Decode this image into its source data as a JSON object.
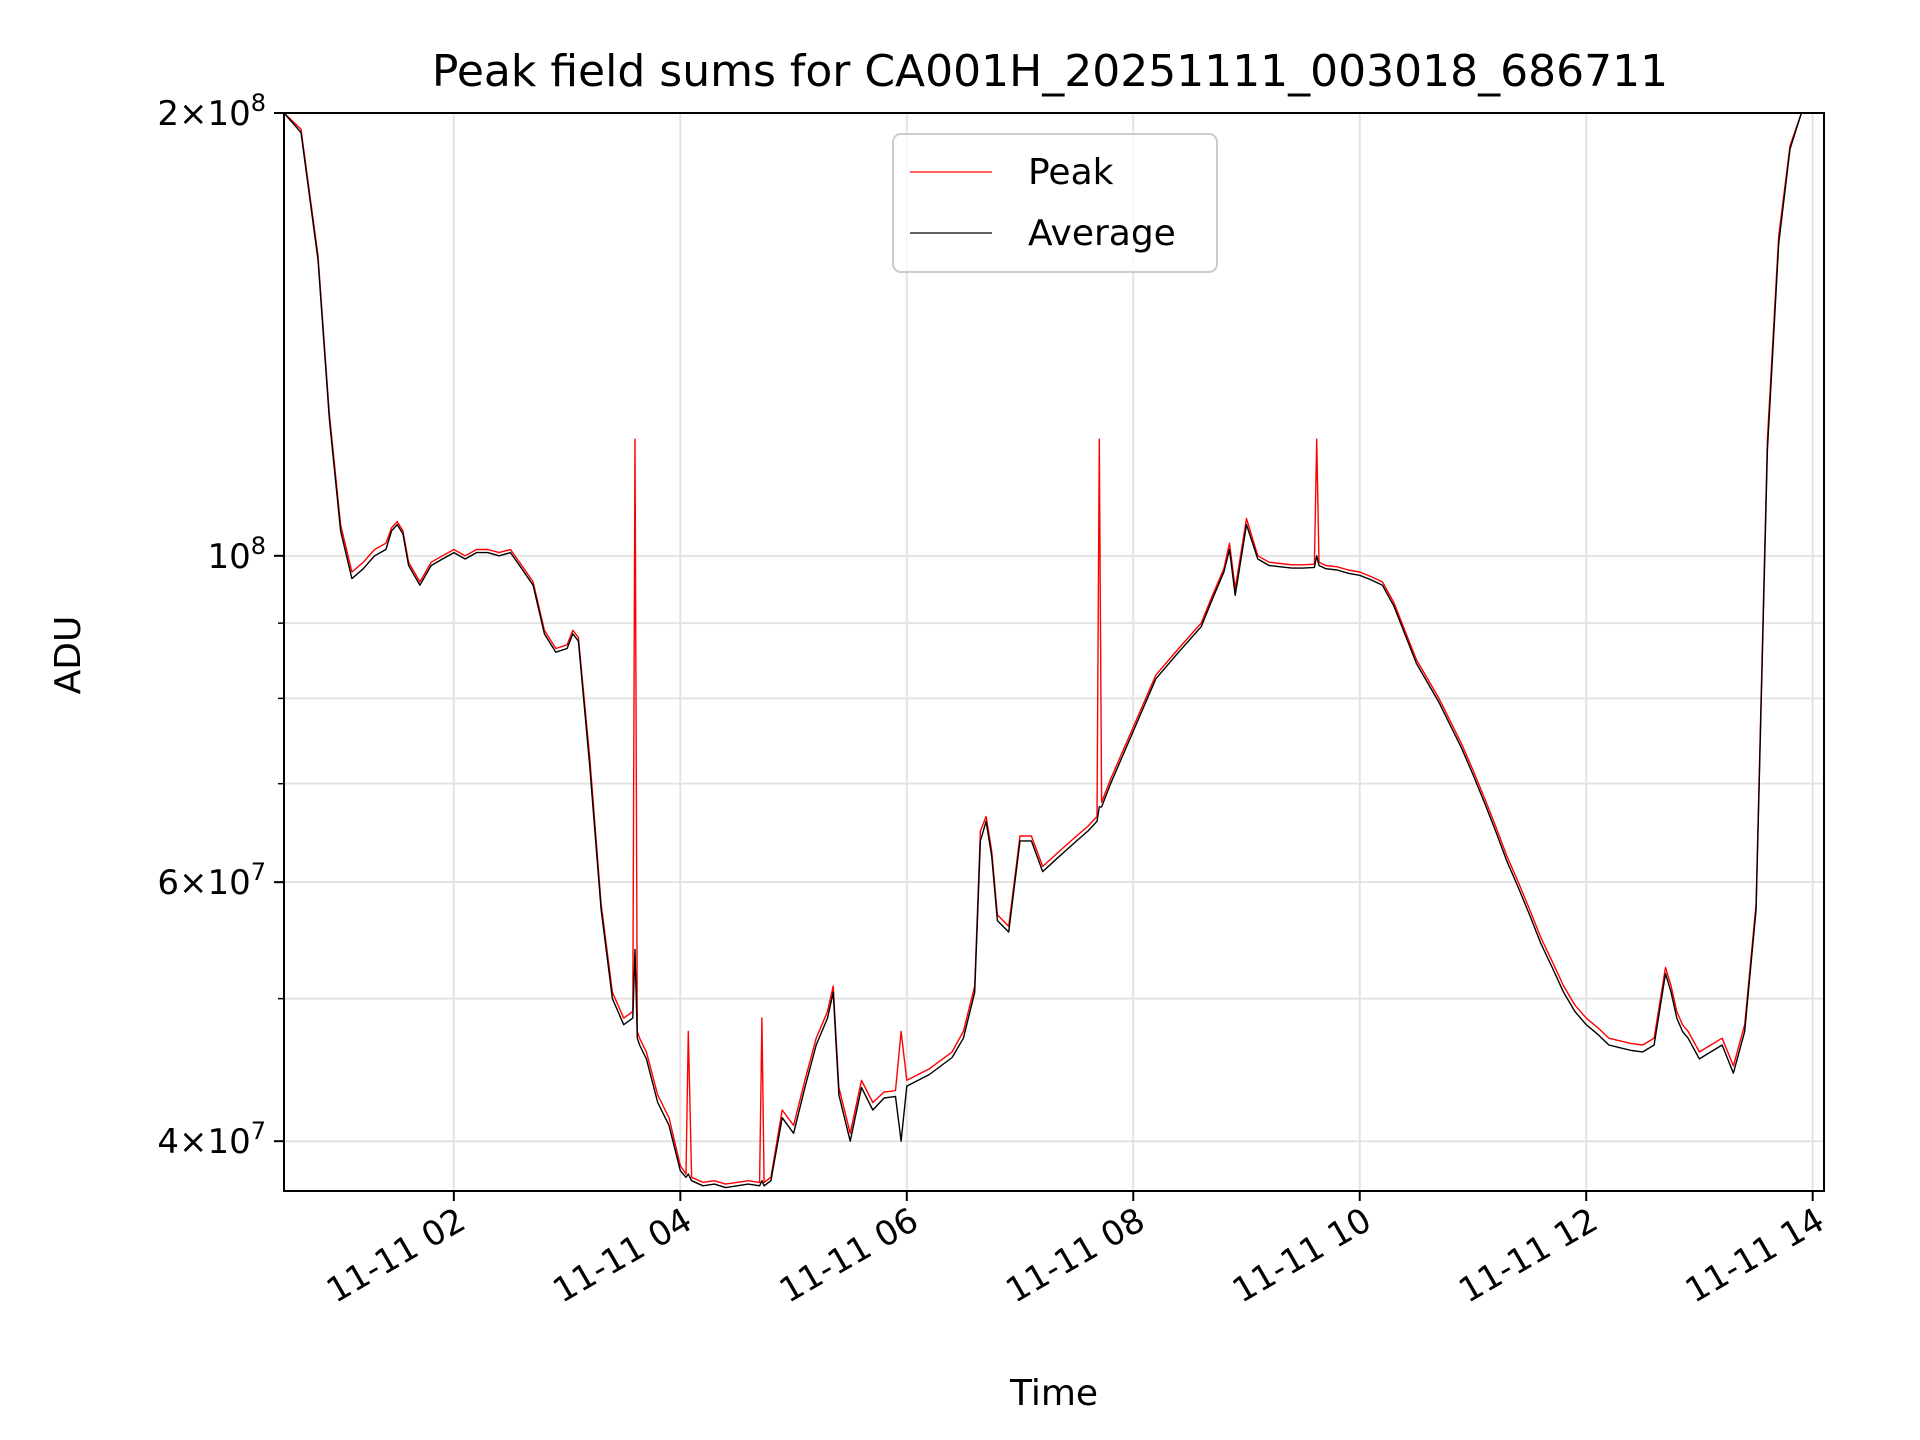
{
  "chart_data": {
    "type": "line",
    "title": "Peak field sums for CA001H_20251111_003018_686711",
    "xlabel": "Time",
    "ylabel": "ADU",
    "yscale": "log",
    "xlim": [
      0.5,
      14.1
    ],
    "ylim": [
      37000000,
      200000000
    ],
    "grid": true,
    "legend_position": "top-center",
    "xticks": [
      {
        "value": 2,
        "label": "11-11 02"
      },
      {
        "value": 4,
        "label": "11-11 04"
      },
      {
        "value": 6,
        "label": "11-11 06"
      },
      {
        "value": 8,
        "label": "11-11 08"
      },
      {
        "value": 10,
        "label": "11-11 10"
      },
      {
        "value": 12,
        "label": "11-11 12"
      },
      {
        "value": 14,
        "label": "11-11 14"
      }
    ],
    "yticks": [
      {
        "value": 40000000,
        "mantissa": "4",
        "exponent": "7"
      },
      {
        "value": 60000000,
        "mantissa": "6",
        "exponent": "7"
      },
      {
        "value": 100000000,
        "mantissa": "",
        "exponent": "8"
      },
      {
        "value": 200000000,
        "mantissa": "2",
        "exponent": "8"
      }
    ],
    "yminor": [
      50000000,
      70000000,
      80000000,
      90000000
    ],
    "series": [
      {
        "name": "Peak",
        "color": "#ff0000",
        "x": [
          0.5,
          0.65,
          0.8,
          0.9,
          1.0,
          1.1,
          1.2,
          1.3,
          1.4,
          1.45,
          1.5,
          1.55,
          1.6,
          1.7,
          1.8,
          1.9,
          2.0,
          2.1,
          2.2,
          2.3,
          2.4,
          2.5,
          2.6,
          2.7,
          2.8,
          2.9,
          3.0,
          3.05,
          3.1,
          3.2,
          3.3,
          3.4,
          3.5,
          3.58,
          3.6,
          3.62,
          3.64,
          3.7,
          3.8,
          3.9,
          4.0,
          4.05,
          4.07,
          4.1,
          4.2,
          4.3,
          4.4,
          4.5,
          4.6,
          4.7,
          4.72,
          4.74,
          4.8,
          4.9,
          5.0,
          5.1,
          5.2,
          5.3,
          5.35,
          5.4,
          5.5,
          5.6,
          5.7,
          5.8,
          5.9,
          5.95,
          6.0,
          6.2,
          6.4,
          6.5,
          6.6,
          6.65,
          6.7,
          6.75,
          6.8,
          6.9,
          7.0,
          7.1,
          7.2,
          7.3,
          7.4,
          7.5,
          7.6,
          7.68,
          7.7,
          7.72,
          7.8,
          8.0,
          8.2,
          8.4,
          8.6,
          8.7,
          8.8,
          8.85,
          8.9,
          9.0,
          9.1,
          9.2,
          9.3,
          9.4,
          9.5,
          9.6,
          9.62,
          9.64,
          9.7,
          9.8,
          9.9,
          10.0,
          10.1,
          10.2,
          10.3,
          10.5,
          10.7,
          10.9,
          11.0,
          11.1,
          11.2,
          11.3,
          11.4,
          11.5,
          11.6,
          11.7,
          11.8,
          11.9,
          12.0,
          12.1,
          12.2,
          12.3,
          12.4,
          12.5,
          12.6,
          12.7,
          12.75,
          12.8,
          12.85,
          12.9,
          13.0,
          13.1,
          13.2,
          13.3,
          13.4,
          13.5,
          13.6,
          13.7,
          13.8,
          13.9,
          14.0,
          14.1
        ],
        "values": [
          200000000,
          195000000,
          160000000,
          125000000,
          105000000,
          97500000,
          99000000,
          101000000,
          102000000,
          104500000,
          105500000,
          104000000,
          99000000,
          96000000,
          99000000,
          100000000,
          101000000,
          100000000,
          101000000,
          101000000,
          100500000,
          101000000,
          98500000,
          96000000,
          89000000,
          86500000,
          87000000,
          89000000,
          88000000,
          73000000,
          58000000,
          50500000,
          48500000,
          49000000,
          120000000,
          47500000,
          47000000,
          46000000,
          43000000,
          41500000,
          38500000,
          38000000,
          47500000,
          37800000,
          37500000,
          37600000,
          37400000,
          37500000,
          37600000,
          37500000,
          48500000,
          37500000,
          37800000,
          42000000,
          41000000,
          44000000,
          47000000,
          49000000,
          51000000,
          43500000,
          40500000,
          44000000,
          42500000,
          43200000,
          43300000,
          47500000,
          44000000,
          44800000,
          46000000,
          47500000,
          51000000,
          65000000,
          66500000,
          63000000,
          57000000,
          56000000,
          64500000,
          64500000,
          61500000,
          62500000,
          63500000,
          64500000,
          65500000,
          66500000,
          120000000,
          68000000,
          70500000,
          76500000,
          83000000,
          86500000,
          90000000,
          94000000,
          98000000,
          102000000,
          95000000,
          106000000,
          100000000,
          99000000,
          98800000,
          98600000,
          98600000,
          98700000,
          120000000,
          99000000,
          98500000,
          98300000,
          97800000,
          97500000,
          96800000,
          96000000,
          93000000,
          85000000,
          80000000,
          74500000,
          71500000,
          68500000,
          65500000,
          62500000,
          60000000,
          57500000,
          55000000,
          53000000,
          51000000,
          49500000,
          48500000,
          47800000,
          47000000,
          46800000,
          46600000,
          46500000,
          47000000,
          52500000,
          51000000,
          49000000,
          48000000,
          47500000,
          46000000,
          46500000,
          47000000,
          45000000,
          48000000,
          58000000,
          120000000,
          165000000,
          190000000,
          200000000,
          200000000,
          200000000
        ]
      },
      {
        "name": "Average",
        "color": "#000000",
        "x": [
          0.5,
          0.65,
          0.8,
          0.9,
          1.0,
          1.1,
          1.2,
          1.3,
          1.4,
          1.45,
          1.5,
          1.55,
          1.6,
          1.7,
          1.8,
          1.9,
          2.0,
          2.1,
          2.2,
          2.3,
          2.4,
          2.5,
          2.6,
          2.7,
          2.8,
          2.9,
          3.0,
          3.05,
          3.1,
          3.2,
          3.3,
          3.4,
          3.5,
          3.58,
          3.6,
          3.62,
          3.64,
          3.7,
          3.8,
          3.9,
          4.0,
          4.05,
          4.07,
          4.1,
          4.2,
          4.3,
          4.4,
          4.5,
          4.6,
          4.7,
          4.72,
          4.74,
          4.8,
          4.9,
          5.0,
          5.1,
          5.2,
          5.3,
          5.35,
          5.4,
          5.5,
          5.6,
          5.7,
          5.8,
          5.9,
          5.95,
          6.0,
          6.2,
          6.4,
          6.5,
          6.6,
          6.65,
          6.7,
          6.75,
          6.8,
          6.9,
          7.0,
          7.1,
          7.2,
          7.3,
          7.4,
          7.5,
          7.6,
          7.68,
          7.7,
          7.72,
          7.8,
          8.0,
          8.2,
          8.4,
          8.6,
          8.7,
          8.8,
          8.85,
          8.9,
          9.0,
          9.1,
          9.2,
          9.3,
          9.4,
          9.5,
          9.6,
          9.62,
          9.64,
          9.7,
          9.8,
          9.9,
          10.0,
          10.1,
          10.2,
          10.3,
          10.5,
          10.7,
          10.9,
          11.0,
          11.1,
          11.2,
          11.3,
          11.4,
          11.5,
          11.6,
          11.7,
          11.8,
          11.9,
          12.0,
          12.1,
          12.2,
          12.3,
          12.4,
          12.5,
          12.6,
          12.7,
          12.75,
          12.8,
          12.85,
          12.9,
          13.0,
          13.1,
          13.2,
          13.3,
          13.4,
          13.5,
          13.6,
          13.7,
          13.8,
          13.9,
          14.0,
          14.1
        ],
        "values": [
          200000000,
          194000000,
          159000000,
          124000000,
          104000000,
          96500000,
          98000000,
          100000000,
          101000000,
          104000000,
          105000000,
          103500000,
          98500000,
          95500000,
          98500000,
          99500000,
          100500000,
          99500000,
          100500000,
          100500000,
          100000000,
          100500000,
          98000000,
          95500000,
          88500000,
          86000000,
          86500000,
          88500000,
          87500000,
          72000000,
          57500000,
          50000000,
          48000000,
          48500000,
          54000000,
          47000000,
          46500000,
          45500000,
          42500000,
          41000000,
          38200000,
          37800000,
          38000000,
          37600000,
          37300000,
          37400000,
          37200000,
          37300000,
          37400000,
          37300000,
          37600000,
          37300000,
          37600000,
          41500000,
          40500000,
          43500000,
          46500000,
          48500000,
          50500000,
          43000000,
          40000000,
          43500000,
          42000000,
          42800000,
          42900000,
          40000000,
          43600000,
          44400000,
          45600000,
          47000000,
          50500000,
          64000000,
          66000000,
          62500000,
          56500000,
          55500000,
          64000000,
          64000000,
          61000000,
          62000000,
          63000000,
          64000000,
          65000000,
          66000000,
          67500000,
          67500000,
          70000000,
          76000000,
          82500000,
          86000000,
          89500000,
          93500000,
          97500000,
          101000000,
          94000000,
          105000000,
          99500000,
          98500000,
          98300000,
          98100000,
          98100000,
          98200000,
          100000000,
          98500000,
          98000000,
          97800000,
          97300000,
          97000000,
          96300000,
          95500000,
          92500000,
          84500000,
          79500000,
          74000000,
          71000000,
          68000000,
          65000000,
          62000000,
          59500000,
          57000000,
          54500000,
          52500000,
          50500000,
          49000000,
          48000000,
          47300000,
          46500000,
          46300000,
          46100000,
          46000000,
          46500000,
          52000000,
          50500000,
          48500000,
          47500000,
          47000000,
          45500000,
          46000000,
          46500000,
          44500000,
          47500000,
          57500000,
          118000000,
          163000000,
          189000000,
          200000000,
          200000000,
          200000000
        ]
      }
    ]
  }
}
